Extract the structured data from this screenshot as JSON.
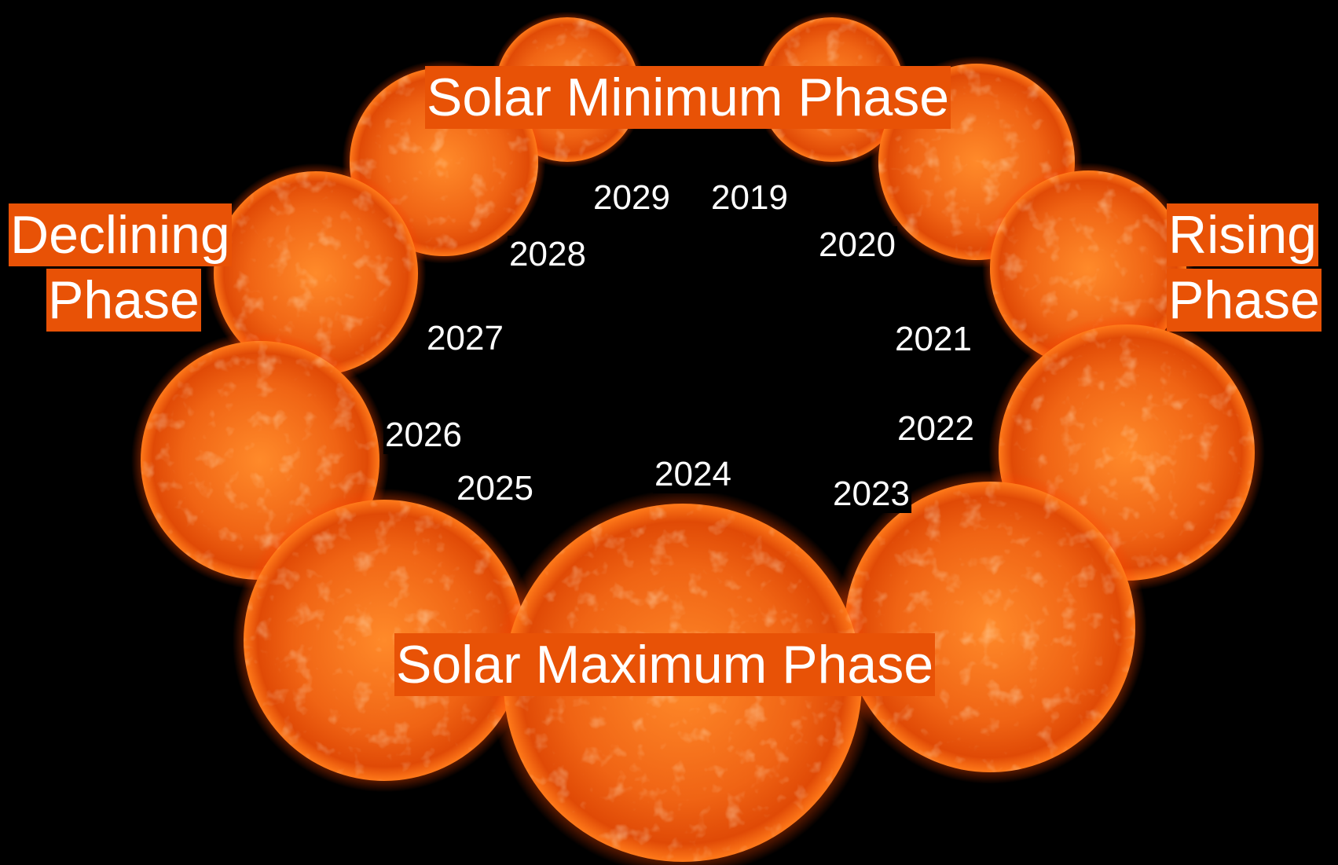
{
  "phases": {
    "minimum": "Solar Minimum Phase",
    "maximum": "Solar Maximum Phase",
    "declining": [
      "Declining",
      "Phase"
    ],
    "rising": [
      "Rising",
      "Phase"
    ]
  },
  "years": [
    "2019",
    "2020",
    "2021",
    "2022",
    "2023",
    "2024",
    "2025",
    "2026",
    "2027",
    "2028",
    "2029"
  ]
}
